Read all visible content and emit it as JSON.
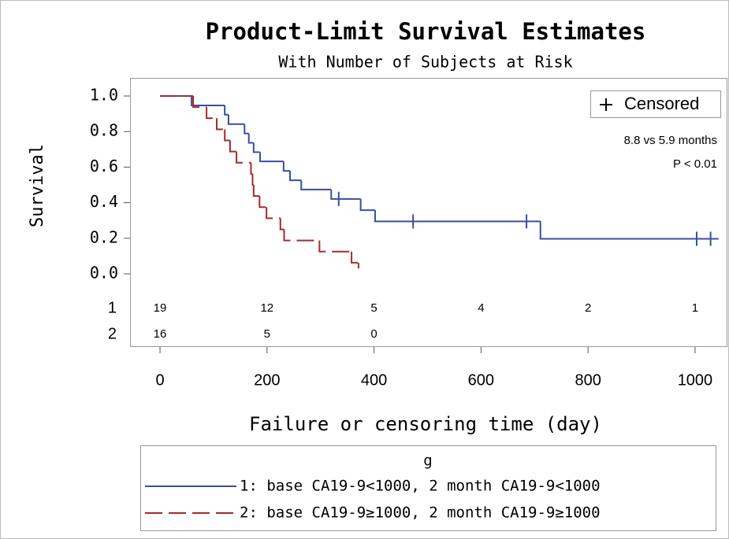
{
  "chart_data": {
    "type": "survival",
    "title": "Product-Limit Survival Estimates",
    "subtitle": "With Number of Subjects at Risk",
    "x_label": "Failure or censoring time (day)",
    "y_label": "Survival",
    "xlim": [
      -56,
      1059
    ],
    "ylim": [
      -0.05,
      1.1
    ],
    "xticks": [
      0,
      200,
      400,
      600,
      800,
      1000
    ],
    "yticks": [
      {
        "value": 0,
        "label": "0.0"
      },
      0.2,
      0.4,
      0.6,
      0.8,
      {
        "value": 1,
        "label": "1.0"
      }
    ],
    "censor_legend": "Censored",
    "annotations": [
      "8.8 vs 5.9 months",
      "P < 0.01"
    ],
    "legend_title": "g",
    "series": [
      {
        "name": "1: base CA19-9<1000, 2 month CA19-9<1000",
        "color": "#3a4fa0",
        "dashed": false,
        "x": [
          0,
          59,
          121,
          128,
          158,
          166,
          175,
          187,
          231,
          243,
          264,
          320,
          375,
          402,
          711
        ],
        "values": [
          1,
          0.947,
          0.895,
          0.842,
          0.789,
          0.737,
          0.684,
          0.632,
          0.579,
          0.526,
          0.474,
          0.421,
          0.358,
          0.295,
          0.197
        ],
        "end": 1044,
        "censor_x": [
          334,
          473,
          685,
          1003,
          1029
        ],
        "censor_values": [
          0.421,
          0.295,
          0.295,
          0.197,
          0.197
        ]
      },
      {
        "name": "2: base CA19-9≥1000, 2 month CA19-9≥1000",
        "color": "#a52a2a",
        "dashed": true,
        "x": [
          0,
          62,
          87,
          106,
          121,
          131,
          143,
          170,
          173,
          175,
          186,
          199,
          225,
          232,
          298,
          358,
          371
        ],
        "values": [
          1,
          0.9375,
          0.875,
          0.8125,
          0.75,
          0.6875,
          0.625,
          0.5625,
          0.5,
          0.4375,
          0.375,
          0.3125,
          0.25,
          0.1875,
          0.125,
          0.0625,
          0.03
        ],
        "end": 371,
        "censor_x": [],
        "censor_values": []
      }
    ],
    "at_risk": {
      "times": [
        0,
        200,
        400,
        600,
        800,
        1000
      ],
      "rows": [
        {
          "label": "1",
          "counts": [
            19,
            12,
            5,
            4,
            2,
            1
          ]
        },
        {
          "label": "2",
          "counts": [
            16,
            5,
            0,
            null,
            null,
            null
          ]
        }
      ]
    }
  }
}
